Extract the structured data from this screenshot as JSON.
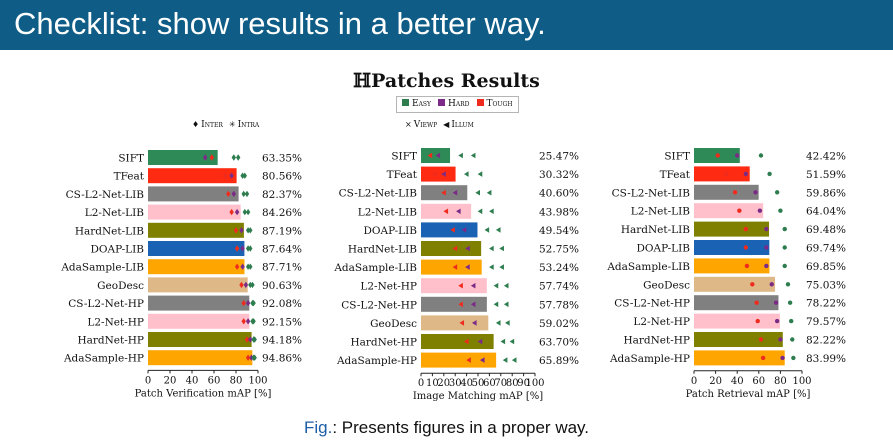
{
  "slide": {
    "title": "Checklist: show results in a better way.",
    "figure_title": "ℍPatches Results",
    "caption_prefix": "Fig.",
    "caption_text": ": Presents figures in a proper way."
  },
  "legend": {
    "difficulty": [
      {
        "label": "Easy",
        "color": "#2e7d4f"
      },
      {
        "label": "Hard",
        "color": "#7b2a87"
      },
      {
        "label": "Tough",
        "color": "#ef2b1d"
      }
    ],
    "verification_markers": [
      {
        "symbol": "♦",
        "label": "Inter"
      },
      {
        "symbol": "✳",
        "label": "Intra"
      }
    ],
    "matching_markers": [
      {
        "symbol": "×",
        "label": "Viewp"
      },
      {
        "symbol": "◀",
        "label": "Illum"
      }
    ]
  },
  "colors": {
    "banner": "#0f5d86",
    "caption_fig": "#1d5ea8"
  },
  "chart_data": [
    {
      "type": "bar",
      "orientation": "horizontal",
      "xlabel": "Patch Verification mAP [%]",
      "xlim": [
        0,
        100
      ],
      "xticks": [
        0,
        20,
        40,
        60,
        80,
        100
      ],
      "grid": false,
      "categories": [
        {
          "label": "SIFT",
          "color": "#2e8b57"
        },
        {
          "label": "TFeat",
          "color": "#ff2a12"
        },
        {
          "label": "CS-L2-Net-LIB",
          "color": "#808080"
        },
        {
          "label": "L2-Net-LIB",
          "color": "#ffc0cb"
        },
        {
          "label": "HardNet-LIB",
          "color": "#808000"
        },
        {
          "label": "DOAP-LIB",
          "color": "#1a62b3"
        },
        {
          "label": "AdaSample-LIB",
          "color": "#ffa500"
        },
        {
          "label": "GeoDesc",
          "color": "#deb887"
        },
        {
          "label": "CS-L2-Net-HP",
          "color": "#808080"
        },
        {
          "label": "L2-Net-HP",
          "color": "#ffc0cb"
        },
        {
          "label": "HardNet-HP",
          "color": "#808000"
        },
        {
          "label": "AdaSample-HP",
          "color": "#ffa500"
        }
      ],
      "values": [
        63.35,
        80.56,
        82.37,
        84.26,
        87.19,
        87.64,
        87.71,
        90.63,
        92.08,
        92.15,
        94.18,
        94.86
      ],
      "value_labels": [
        "63.35%",
        "80.56%",
        "82.37%",
        "84.26%",
        "87.19%",
        "87.64%",
        "87.71%",
        "90.63%",
        "92.08%",
        "92.15%",
        "94.18%",
        "94.86%"
      ],
      "markers": [
        [
          [
            52,
            "#7b2a87"
          ],
          [
            58,
            "#ef2b1d"
          ],
          [
            78,
            "#2e7d4f"
          ],
          [
            82,
            "#2e7d4f"
          ]
        ],
        [
          [
            70,
            "#ef2b1d"
          ],
          [
            76,
            "#7b2a87"
          ],
          [
            86,
            "#2e7d4f"
          ],
          [
            88,
            "#2e7d4f"
          ]
        ],
        [
          [
            73,
            "#ef2b1d"
          ],
          [
            78,
            "#7b2a87"
          ],
          [
            87,
            "#2e7d4f"
          ],
          [
            90,
            "#2e7d4f"
          ]
        ],
        [
          [
            76,
            "#ef2b1d"
          ],
          [
            81,
            "#7b2a87"
          ],
          [
            88,
            "#2e7d4f"
          ],
          [
            91,
            "#2e7d4f"
          ]
        ],
        [
          [
            80,
            "#ef2b1d"
          ],
          [
            85,
            "#7b2a87"
          ],
          [
            91,
            "#2e7d4f"
          ],
          [
            93,
            "#2e7d4f"
          ]
        ],
        [
          [
            81,
            "#ef2b1d"
          ],
          [
            86,
            "#7b2a87"
          ],
          [
            91,
            "#2e7d4f"
          ],
          [
            93,
            "#2e7d4f"
          ]
        ],
        [
          [
            81,
            "#ef2b1d"
          ],
          [
            86,
            "#7b2a87"
          ],
          [
            91,
            "#2e7d4f"
          ],
          [
            93,
            "#2e7d4f"
          ]
        ],
        [
          [
            85,
            "#ef2b1d"
          ],
          [
            89,
            "#7b2a87"
          ],
          [
            93,
            "#2e7d4f"
          ],
          [
            95,
            "#2e7d4f"
          ]
        ],
        [
          [
            87,
            "#ef2b1d"
          ],
          [
            91,
            "#7b2a87"
          ],
          [
            95,
            "#2e7d4f"
          ],
          [
            96,
            "#2e7d4f"
          ]
        ],
        [
          [
            87,
            "#ef2b1d"
          ],
          [
            91,
            "#7b2a87"
          ],
          [
            95,
            "#2e7d4f"
          ],
          [
            96,
            "#2e7d4f"
          ]
        ],
        [
          [
            90,
            "#ef2b1d"
          ],
          [
            93,
            "#7b2a87"
          ],
          [
            96,
            "#2e7d4f"
          ],
          [
            97,
            "#2e7d4f"
          ]
        ],
        [
          [
            91,
            "#ef2b1d"
          ],
          [
            94,
            "#7b2a87"
          ],
          [
            96,
            "#2e7d4f"
          ],
          [
            97,
            "#2e7d4f"
          ]
        ]
      ]
    },
    {
      "type": "bar",
      "orientation": "horizontal",
      "xlabel": "Image Matching mAP [%]",
      "xlim": [
        0,
        100
      ],
      "xticks": [
        0,
        10,
        20,
        30,
        40,
        50,
        60,
        70,
        80,
        90,
        100
      ],
      "grid": false,
      "categories": [
        {
          "label": "SIFT",
          "color": "#2e8b57"
        },
        {
          "label": "TFeat",
          "color": "#ff2a12"
        },
        {
          "label": "CS-L2-Net-LIB",
          "color": "#808080"
        },
        {
          "label": "L2-Net-LIB",
          "color": "#ffc0cb"
        },
        {
          "label": "DOAP-LIB",
          "color": "#1a62b3"
        },
        {
          "label": "HardNet-LIB",
          "color": "#808000"
        },
        {
          "label": "AdaSample-LIB",
          "color": "#ffa500"
        },
        {
          "label": "L2-Net-HP",
          "color": "#ffc0cb"
        },
        {
          "label": "CS-L2-Net-HP",
          "color": "#808080"
        },
        {
          "label": "GeoDesc",
          "color": "#deb887"
        },
        {
          "label": "HardNet-HP",
          "color": "#808000"
        },
        {
          "label": "AdaSample-HP",
          "color": "#ffa500"
        }
      ],
      "values": [
        25.47,
        30.32,
        40.6,
        43.98,
        49.54,
        52.75,
        53.24,
        57.74,
        57.78,
        59.02,
        63.7,
        65.89
      ],
      "value_labels": [
        "25.47%",
        "30.32%",
        "40.60%",
        "43.98%",
        "49.54%",
        "52.75%",
        "53.24%",
        "57.74%",
        "57.78%",
        "59.02%",
        "63.70%",
        "65.89%"
      ],
      "markers": [
        [
          [
            8,
            "#ef2b1d"
          ],
          [
            15,
            "#7b2a87"
          ],
          [
            35,
            "#2e7d4f"
          ],
          [
            46,
            "#2e7d4f"
          ]
        ],
        [
          [
            12,
            "#ef2b1d"
          ],
          [
            20,
            "#7b2a87"
          ],
          [
            40,
            "#2e7d4f"
          ],
          [
            52,
            "#2e7d4f"
          ]
        ],
        [
          [
            20,
            "#ef2b1d"
          ],
          [
            30,
            "#7b2a87"
          ],
          [
            50,
            "#2e7d4f"
          ],
          [
            60,
            "#2e7d4f"
          ]
        ],
        [
          [
            22,
            "#ef2b1d"
          ],
          [
            33,
            "#7b2a87"
          ],
          [
            52,
            "#2e7d4f"
          ],
          [
            62,
            "#2e7d4f"
          ]
        ],
        [
          [
            28,
            "#ef2b1d"
          ],
          [
            38,
            "#7b2a87"
          ],
          [
            58,
            "#2e7d4f"
          ],
          [
            68,
            "#2e7d4f"
          ]
        ],
        [
          [
            30,
            "#ef2b1d"
          ],
          [
            41,
            "#7b2a87"
          ],
          [
            62,
            "#2e7d4f"
          ],
          [
            71,
            "#2e7d4f"
          ]
        ],
        [
          [
            30,
            "#ef2b1d"
          ],
          [
            41,
            "#7b2a87"
          ],
          [
            62,
            "#2e7d4f"
          ],
          [
            71,
            "#2e7d4f"
          ]
        ],
        [
          [
            35,
            "#ef2b1d"
          ],
          [
            46,
            "#7b2a87"
          ],
          [
            66,
            "#2e7d4f"
          ],
          [
            75,
            "#2e7d4f"
          ]
        ],
        [
          [
            35,
            "#ef2b1d"
          ],
          [
            46,
            "#7b2a87"
          ],
          [
            66,
            "#2e7d4f"
          ],
          [
            75,
            "#2e7d4f"
          ]
        ],
        [
          [
            36,
            "#ef2b1d"
          ],
          [
            47,
            "#7b2a87"
          ],
          [
            68,
            "#2e7d4f"
          ],
          [
            76,
            "#2e7d4f"
          ]
        ],
        [
          [
            40,
            "#ef2b1d"
          ],
          [
            52,
            "#7b2a87"
          ],
          [
            72,
            "#2e7d4f"
          ],
          [
            80,
            "#2e7d4f"
          ]
        ],
        [
          [
            42,
            "#ef2b1d"
          ],
          [
            54,
            "#7b2a87"
          ],
          [
            74,
            "#2e7d4f"
          ],
          [
            82,
            "#2e7d4f"
          ]
        ]
      ]
    },
    {
      "type": "bar",
      "orientation": "horizontal",
      "xlabel": "Patch Retrieval mAP [%]",
      "xlim": [
        0,
        100
      ],
      "xticks": [
        0,
        20,
        40,
        60,
        80,
        100
      ],
      "grid": false,
      "categories": [
        {
          "label": "SIFT",
          "color": "#2e8b57"
        },
        {
          "label": "TFeat",
          "color": "#ff2a12"
        },
        {
          "label": "CS-L2-Net-LIB",
          "color": "#808080"
        },
        {
          "label": "L2-Net-LIB",
          "color": "#ffc0cb"
        },
        {
          "label": "HardNet-LIB",
          "color": "#808000"
        },
        {
          "label": "DOAP-LIB",
          "color": "#1a62b3"
        },
        {
          "label": "AdaSample-LIB",
          "color": "#ffa500"
        },
        {
          "label": "GeoDesc",
          "color": "#deb887"
        },
        {
          "label": "CS-L2-Net-HP",
          "color": "#808080"
        },
        {
          "label": "L2-Net-HP",
          "color": "#ffc0cb"
        },
        {
          "label": "HardNet-HP",
          "color": "#808000"
        },
        {
          "label": "AdaSample-HP",
          "color": "#ffa500"
        }
      ],
      "values": [
        42.42,
        51.59,
        59.86,
        64.04,
        69.48,
        69.74,
        69.85,
        75.03,
        78.22,
        79.57,
        82.22,
        83.99
      ],
      "value_labels": [
        "42.42%",
        "51.59%",
        "59.86%",
        "64.04%",
        "69.48%",
        "69.74%",
        "69.85%",
        "75.03%",
        "78.22%",
        "79.57%",
        "82.22%",
        "83.99%"
      ],
      "markers": [
        [
          [
            22,
            "#ef2b1d"
          ],
          [
            40,
            "#7b2a87"
          ],
          [
            62,
            "#2e7d4f"
          ]
        ],
        [
          [
            30,
            "#ef2b1d"
          ],
          [
            48,
            "#7b2a87"
          ],
          [
            70,
            "#2e7d4f"
          ]
        ],
        [
          [
            38,
            "#ef2b1d"
          ],
          [
            57,
            "#7b2a87"
          ],
          [
            77,
            "#2e7d4f"
          ]
        ],
        [
          [
            42,
            "#ef2b1d"
          ],
          [
            61,
            "#7b2a87"
          ],
          [
            80,
            "#2e7d4f"
          ]
        ],
        [
          [
            48,
            "#ef2b1d"
          ],
          [
            67,
            "#7b2a87"
          ],
          [
            84,
            "#2e7d4f"
          ]
        ],
        [
          [
            48,
            "#ef2b1d"
          ],
          [
            67,
            "#7b2a87"
          ],
          [
            84,
            "#2e7d4f"
          ]
        ],
        [
          [
            49,
            "#ef2b1d"
          ],
          [
            67,
            "#7b2a87"
          ],
          [
            84,
            "#2e7d4f"
          ]
        ],
        [
          [
            54,
            "#ef2b1d"
          ],
          [
            72,
            "#7b2a87"
          ],
          [
            87,
            "#2e7d4f"
          ]
        ],
        [
          [
            58,
            "#ef2b1d"
          ],
          [
            76,
            "#7b2a87"
          ],
          [
            89,
            "#2e7d4f"
          ]
        ],
        [
          [
            59,
            "#ef2b1d"
          ],
          [
            77,
            "#7b2a87"
          ],
          [
            90,
            "#2e7d4f"
          ]
        ],
        [
          [
            62,
            "#ef2b1d"
          ],
          [
            80,
            "#7b2a87"
          ],
          [
            91,
            "#2e7d4f"
          ]
        ],
        [
          [
            64,
            "#ef2b1d"
          ],
          [
            82,
            "#7b2a87"
          ],
          [
            92,
            "#2e7d4f"
          ]
        ]
      ]
    }
  ]
}
